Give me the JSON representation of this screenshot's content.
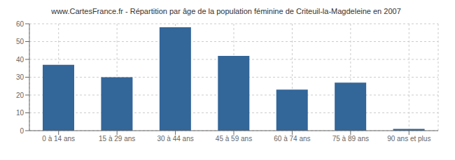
{
  "chart_data": {
    "type": "bar",
    "title": "www.CartesFrance.fr - Répartition par âge de la population féminine de Criteuil-la-Magdeleine en 2007",
    "categories": [
      "0 à 14 ans",
      "15 à 29 ans",
      "30 à 44 ans",
      "45 à 59 ans",
      "60 à 74 ans",
      "75 à 89 ans",
      "90 ans et plus"
    ],
    "values": [
      37,
      30,
      58,
      42,
      23,
      27,
      1
    ],
    "color": "#336699",
    "ylim": [
      0,
      60
    ],
    "yticks": [
      0,
      10,
      20,
      30,
      40,
      50,
      60
    ],
    "grid": true
  }
}
